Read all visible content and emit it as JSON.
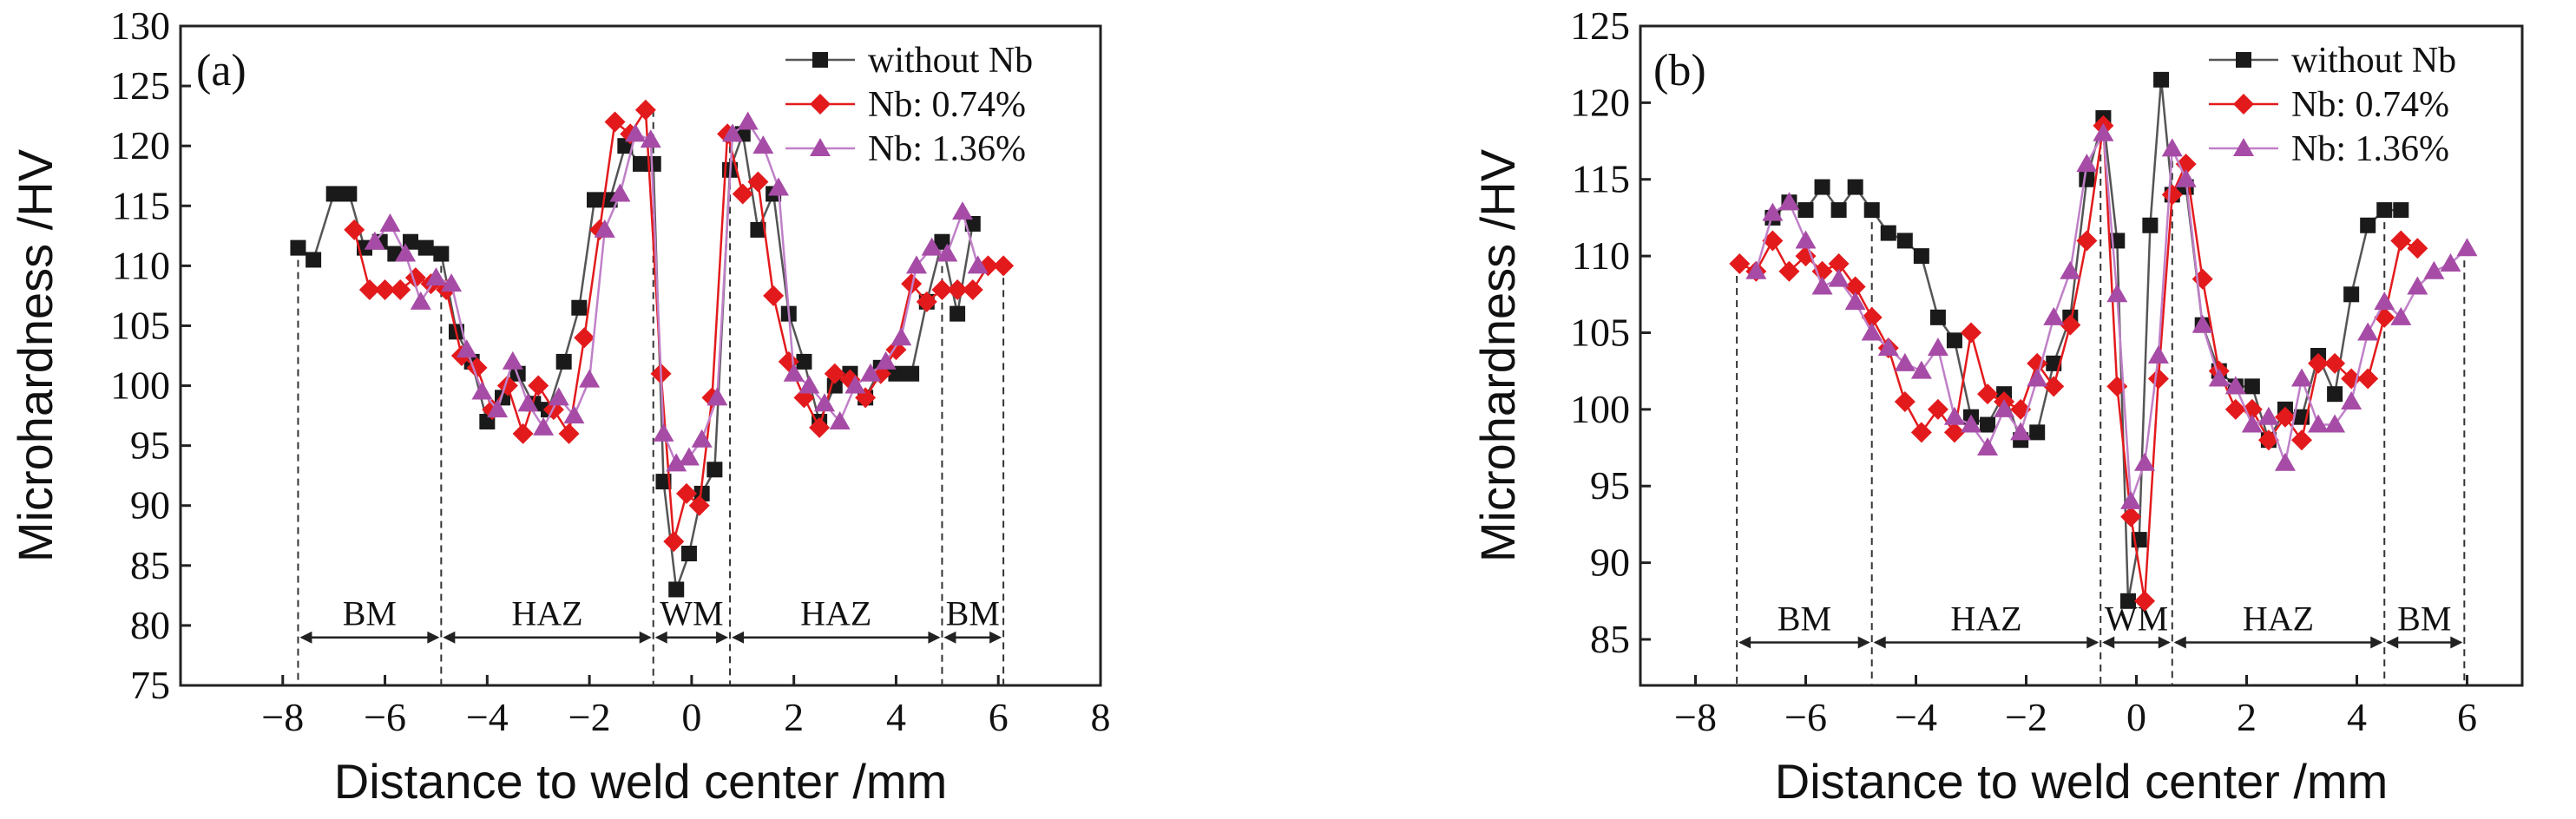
{
  "chart_data": [
    {
      "type": "line",
      "panel_label": "(a)",
      "xlabel": "Distance to weld center /mm",
      "ylabel": "Microhardness /HV",
      "xlim": [
        -10,
        8
      ],
      "ylim": [
        75,
        130
      ],
      "xticks": [
        -8,
        -6,
        -4,
        -2,
        0,
        2,
        4,
        6,
        8
      ],
      "yticks": [
        75,
        80,
        85,
        90,
        95,
        100,
        105,
        110,
        115,
        120,
        125,
        130
      ],
      "legend": {
        "placement": "top-right"
      },
      "regions": [
        {
          "label": "BM",
          "from": -7.7,
          "to": -4.9
        },
        {
          "label": "HAZ",
          "from": -4.9,
          "to": -0.75
        },
        {
          "label": "WM",
          "from": -0.75,
          "to": 0.75
        },
        {
          "label": "HAZ",
          "from": 0.75,
          "to": 4.9
        },
        {
          "label": "BM",
          "from": 4.9,
          "to": 6.1
        }
      ],
      "region_arrow_y": 79,
      "series": [
        {
          "name": "without Nb",
          "color": "#1a1a1a",
          "line_color": "#555555",
          "marker": "square",
          "x": [
            -7.7,
            -7.4,
            -7.0,
            -6.7,
            -6.4,
            -6.1,
            -5.8,
            -5.5,
            -5.2,
            -4.9,
            -4.6,
            -4.3,
            -4.0,
            -3.7,
            -3.4,
            -3.1,
            -2.8,
            -2.5,
            -2.2,
            -1.9,
            -1.6,
            -1.3,
            -1.0,
            -0.75,
            -0.55,
            -0.3,
            -0.05,
            0.2,
            0.45,
            0.75,
            1.0,
            1.3,
            1.6,
            1.9,
            2.2,
            2.5,
            2.8,
            3.1,
            3.4,
            3.7,
            4.0,
            4.3,
            4.6,
            4.9,
            5.2,
            5.5
          ],
          "y": [
            111.5,
            110.5,
            116,
            116,
            111.5,
            112,
            111,
            112,
            111.5,
            111,
            104.5,
            102,
            97,
            99,
            101,
            98.5,
            98,
            102,
            106.5,
            115.5,
            115.5,
            120,
            118.5,
            118.5,
            92,
            83,
            86,
            91,
            93,
            118,
            121,
            113,
            116,
            106,
            102,
            97,
            100,
            101,
            99,
            101.5,
            101,
            101,
            107,
            112,
            106,
            113.5
          ]
        },
        {
          "name": "Nb: 0.74%",
          "color": "#e31a1c",
          "line_color": "#e31a1c",
          "marker": "diamond",
          "x": [
            -6.6,
            -6.3,
            -6.0,
            -5.7,
            -5.4,
            -5.1,
            -4.8,
            -4.5,
            -4.2,
            -3.9,
            -3.6,
            -3.3,
            -3.0,
            -2.7,
            -2.4,
            -2.1,
            -1.8,
            -1.5,
            -1.2,
            -0.9,
            -0.6,
            -0.35,
            -0.1,
            0.15,
            0.4,
            0.7,
            1.0,
            1.3,
            1.6,
            1.9,
            2.2,
            2.5,
            2.8,
            3.1,
            3.4,
            3.7,
            4.0,
            4.3,
            4.6,
            4.9,
            5.2,
            5.5,
            5.8,
            6.1
          ],
          "y": [
            113,
            108,
            108,
            108,
            109,
            108.5,
            108,
            102.5,
            101.5,
            98,
            100,
            96,
            100,
            98,
            96,
            104,
            113,
            122,
            121,
            123,
            101,
            87,
            91,
            90,
            99,
            121,
            116,
            117,
            107.5,
            102,
            99,
            96.5,
            101,
            100.5,
            99,
            101,
            103,
            108.5,
            107,
            108,
            108,
            108,
            110,
            110
          ]
        },
        {
          "name": "Nb: 1.36%",
          "color": "#a64ca6",
          "line_color": "#c080c8",
          "marker": "triangle",
          "x": [
            -6.2,
            -5.9,
            -5.6,
            -5.3,
            -5.0,
            -4.7,
            -4.4,
            -4.1,
            -3.8,
            -3.5,
            -3.2,
            -2.9,
            -2.6,
            -2.3,
            -2.0,
            -1.7,
            -1.4,
            -1.1,
            -0.8,
            -0.55,
            -0.3,
            -0.05,
            0.2,
            0.5,
            0.8,
            1.1,
            1.4,
            1.7,
            2.0,
            2.3,
            2.6,
            2.9,
            3.2,
            3.5,
            3.8,
            4.1,
            4.4,
            4.7,
            5.0,
            5.3,
            5.6
          ],
          "y": [
            112,
            113.5,
            111,
            107,
            109,
            108.5,
            103,
            99.5,
            98,
            102,
            98.5,
            96.5,
            99,
            97.5,
            100.5,
            113,
            116,
            121,
            120.5,
            96,
            93.5,
            94,
            95.5,
            99,
            121,
            122,
            120,
            116.5,
            101,
            100,
            98.5,
            97,
            100,
            101,
            102,
            104,
            110,
            111.5,
            111,
            114.5,
            110
          ]
        }
      ]
    },
    {
      "type": "line",
      "panel_label": "(b)",
      "xlabel": "Distance to weld center /mm",
      "ylabel": "Microhardness /HV",
      "xlim": [
        -9,
        7
      ],
      "ylim": [
        82,
        125
      ],
      "xticks": [
        -8,
        -6,
        -4,
        -2,
        0,
        2,
        4,
        6
      ],
      "yticks": [
        85,
        90,
        95,
        100,
        105,
        110,
        115,
        120,
        125
      ],
      "legend": {
        "placement": "top-right"
      },
      "regions": [
        {
          "label": "BM",
          "from": -7.25,
          "to": -4.8
        },
        {
          "label": "HAZ",
          "from": -4.8,
          "to": -0.65
        },
        {
          "label": "WM",
          "from": -0.65,
          "to": 0.65
        },
        {
          "label": "HAZ",
          "from": 0.65,
          "to": 4.5
        },
        {
          "label": "BM",
          "from": 4.5,
          "to": 5.95
        }
      ],
      "region_arrow_y": 84.8,
      "series": [
        {
          "name": "without Nb",
          "color": "#1a1a1a",
          "line_color": "#555555",
          "marker": "square",
          "x": [
            -6.6,
            -6.3,
            -6.0,
            -5.7,
            -5.4,
            -5.1,
            -4.8,
            -4.5,
            -4.2,
            -3.9,
            -3.6,
            -3.3,
            -3.0,
            -2.7,
            -2.4,
            -2.1,
            -1.8,
            -1.5,
            -1.2,
            -0.9,
            -0.6,
            -0.35,
            -0.15,
            0.05,
            0.25,
            0.45,
            0.65,
            0.9,
            1.2,
            1.5,
            1.8,
            2.1,
            2.4,
            2.7,
            3.0,
            3.3,
            3.6,
            3.9,
            4.2,
            4.5,
            4.8
          ],
          "y": [
            112.5,
            113.5,
            113,
            114.5,
            113,
            114.5,
            113,
            111.5,
            111,
            110,
            106,
            104.5,
            99.5,
            99,
            101,
            98,
            98.5,
            103,
            106,
            115,
            119,
            111,
            87.5,
            91.5,
            112,
            121.5,
            114,
            114.5,
            105.5,
            102.5,
            101.5,
            101.5,
            98,
            100,
            99.5,
            103.5,
            101,
            107.5,
            112,
            113,
            113
          ]
        },
        {
          "name": "Nb: 0.74%",
          "color": "#e31a1c",
          "line_color": "#e31a1c",
          "marker": "diamond",
          "x": [
            -7.2,
            -6.9,
            -6.6,
            -6.3,
            -6.0,
            -5.7,
            -5.4,
            -5.1,
            -4.8,
            -4.5,
            -4.2,
            -3.9,
            -3.6,
            -3.3,
            -3.0,
            -2.7,
            -2.4,
            -2.1,
            -1.8,
            -1.5,
            -1.2,
            -0.9,
            -0.6,
            -0.35,
            -0.1,
            0.15,
            0.4,
            0.65,
            0.9,
            1.2,
            1.5,
            1.8,
            2.1,
            2.4,
            2.7,
            3.0,
            3.3,
            3.6,
            3.9,
            4.2,
            4.5,
            4.8,
            5.1
          ],
          "y": [
            109.5,
            109,
            111,
            109,
            110,
            109,
            109.5,
            108,
            106,
            104,
            100.5,
            98.5,
            100,
            98.5,
            105,
            101,
            100.5,
            100,
            103,
            101.5,
            105.5,
            111,
            118.5,
            101.5,
            93,
            87.5,
            102,
            114,
            116,
            108.5,
            102.5,
            100,
            100,
            98,
            99.5,
            98,
            103,
            103,
            102,
            102,
            106,
            111,
            110.5
          ]
        },
        {
          "name": "Nb: 1.36%",
          "color": "#a64ca6",
          "line_color": "#c080c8",
          "marker": "triangle",
          "x": [
            -6.9,
            -6.6,
            -6.3,
            -6.0,
            -5.7,
            -5.4,
            -5.1,
            -4.8,
            -4.5,
            -4.2,
            -3.9,
            -3.6,
            -3.3,
            -3.0,
            -2.7,
            -2.4,
            -2.1,
            -1.8,
            -1.5,
            -1.2,
            -0.9,
            -0.6,
            -0.35,
            -0.1,
            0.15,
            0.4,
            0.65,
            0.9,
            1.2,
            1.5,
            1.8,
            2.1,
            2.4,
            2.7,
            3.0,
            3.3,
            3.6,
            3.9,
            4.2,
            4.5,
            4.8,
            5.1,
            5.4,
            5.7,
            6.0
          ],
          "y": [
            109,
            112.8,
            113.5,
            111,
            108,
            108.5,
            107,
            105,
            104,
            103,
            102.5,
            104,
            99.5,
            99,
            97.5,
            100,
            98.5,
            102,
            106,
            109,
            116,
            118,
            107.5,
            94,
            96.5,
            103.5,
            117,
            115,
            105.5,
            102,
            101.5,
            99,
            99.5,
            96.5,
            102,
            99,
            99,
            100.5,
            105,
            107,
            106,
            108,
            109,
            109.5,
            110.5
          ]
        }
      ]
    }
  ]
}
